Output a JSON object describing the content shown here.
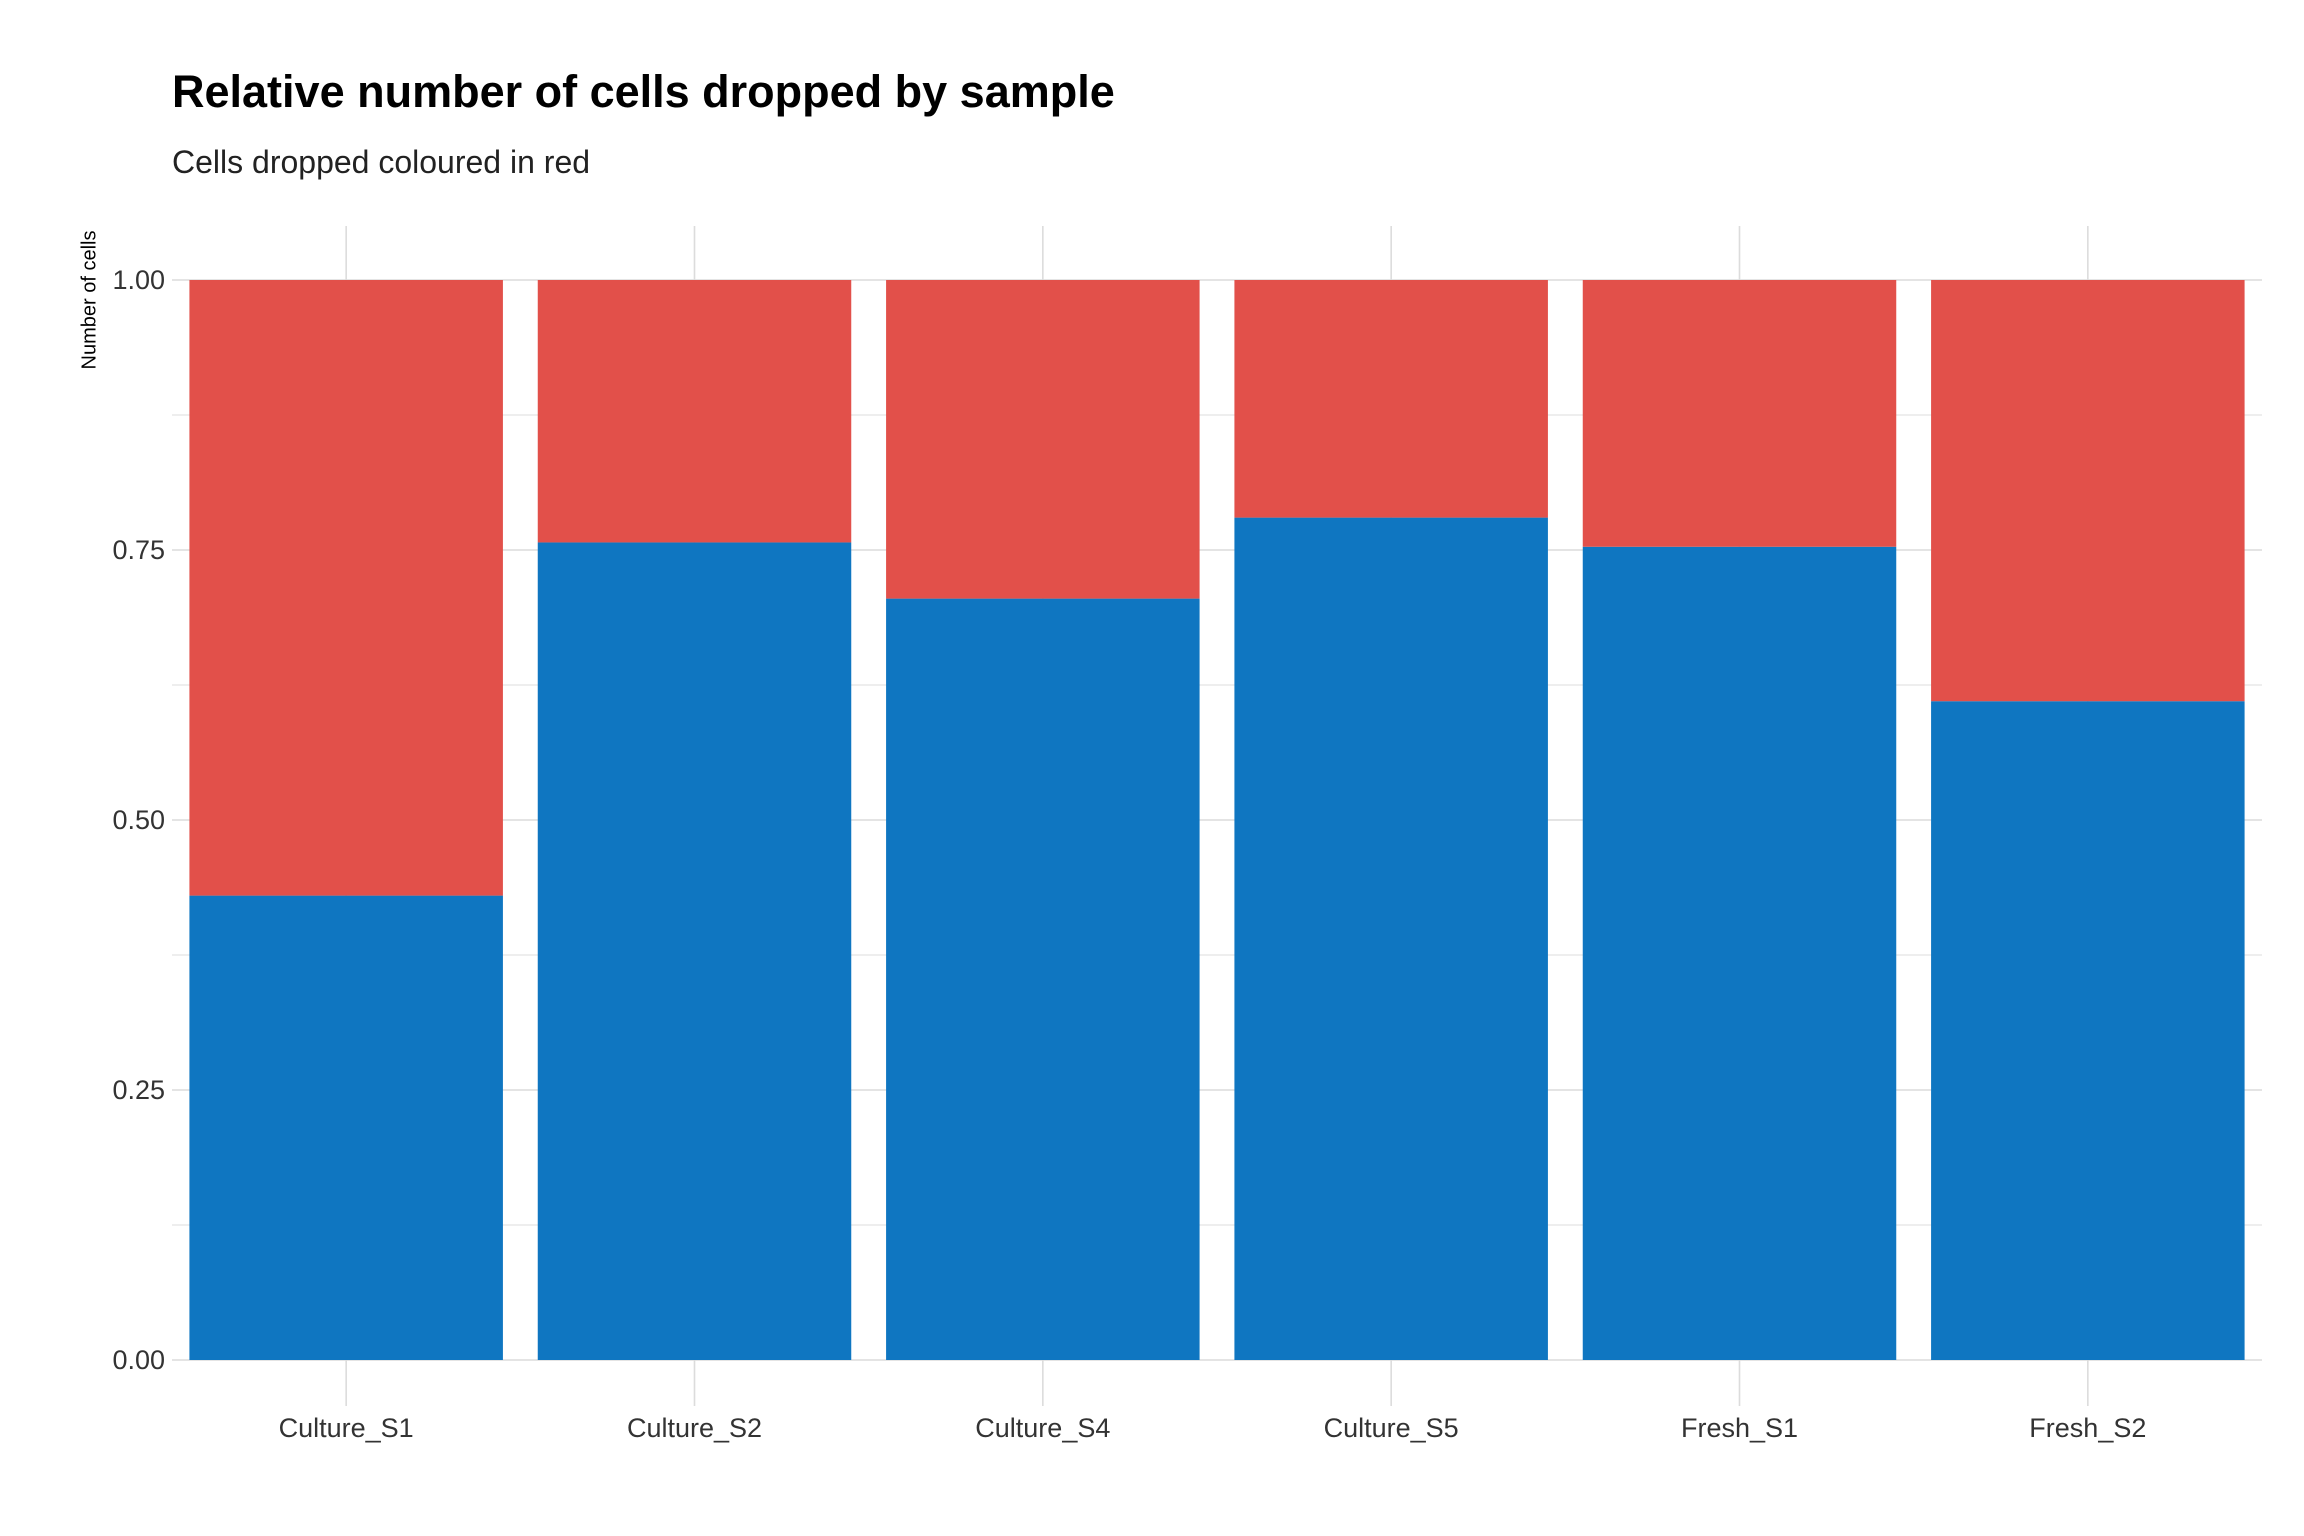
{
  "chart_data": {
    "type": "bar",
    "stacked": true,
    "normalized": true,
    "title": "Relative number of cells dropped by sample",
    "subtitle": "Cells dropped coloured in red",
    "xlabel": "",
    "ylabel": "Number of cells",
    "ylim": [
      0,
      1
    ],
    "yticks": [
      "0.00",
      "0.25",
      "0.50",
      "0.75",
      "1.00"
    ],
    "categories": [
      "Culture_S1",
      "Culture_S2",
      "Culture_S4",
      "Culture_S5",
      "Fresh_S1",
      "Fresh_S2"
    ],
    "series": [
      {
        "values": [
          0.43,
          0.757,
          0.705,
          0.78,
          0.753,
          0.61
        ],
        "color": "#0f76c1"
      },
      {
        "values": [
          0.57,
          0.243,
          0.295,
          0.22,
          0.247,
          0.39
        ],
        "color": "#e2504a"
      }
    ],
    "grid": true,
    "legend": "none"
  }
}
